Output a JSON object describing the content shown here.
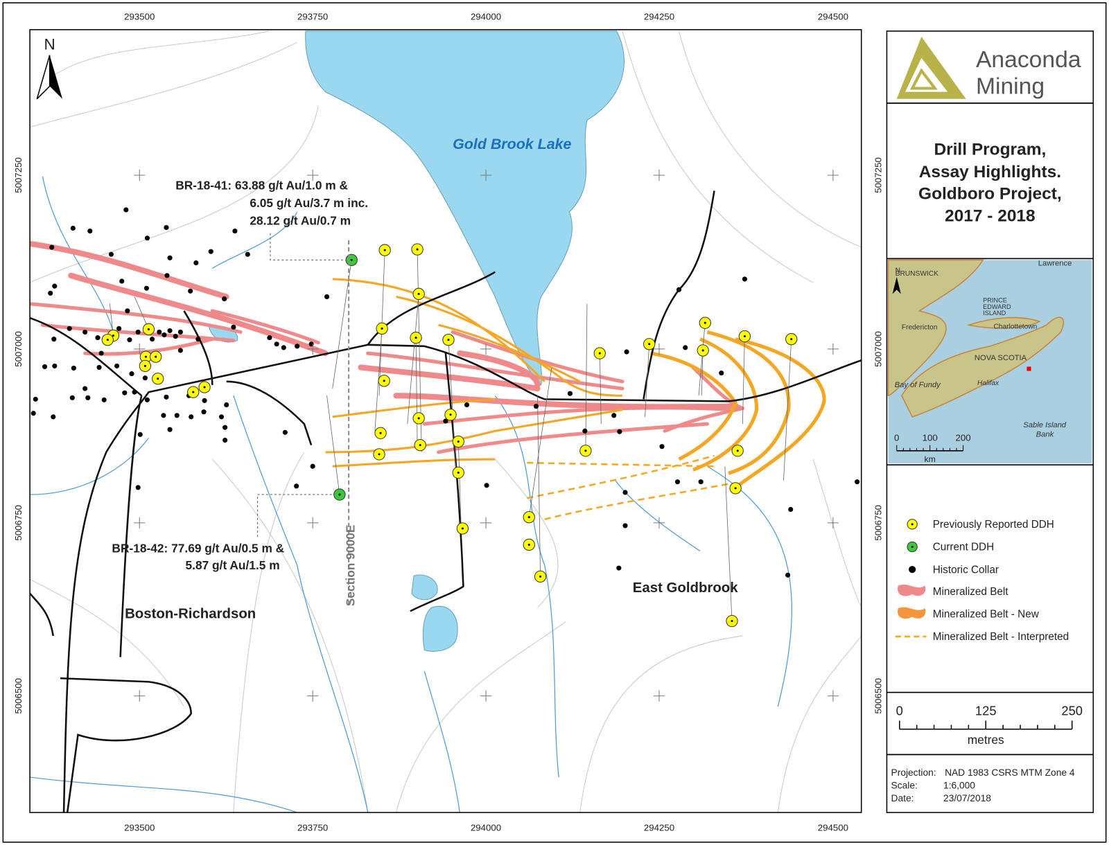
{
  "map": {
    "x_labels": [
      293500,
      293750,
      294000,
      294250,
      294500
    ],
    "y_labels": [
      5007250,
      5007000,
      5006750,
      5006500
    ],
    "north": "N",
    "lake": "Gold Brook Lake",
    "places": [
      "Boston-Richardson",
      "East Goldbrook"
    ],
    "section": "Section 9000E",
    "annotations": [
      [
        "BR-18-41: 63.88 g/t Au/1.0 m &",
        "6.05 g/t Au/3.7 m inc.",
        "28.12 g/t Au/0.7 m"
      ],
      [
        "BR-18-42: 77.69 g/t Au/0.5 m &",
        "5.87 g/t Au/1.5 m"
      ]
    ]
  },
  "logo": [
    "Anaconda",
    "Mining"
  ],
  "title": [
    "Drill Program,",
    "Assay Highlights.",
    "Goldboro Project,",
    "2017 - 2018"
  ],
  "inset": {
    "north": "N",
    "labels": [
      "BRUNSWICK",
      "Lawrence",
      "PRINCE",
      "EDWARD",
      "ISLAND",
      "Fredericton",
      "Charlottetown",
      "NOVA SCOTIA",
      "Bay of Fundy",
      "Halifax",
      "Sable Island",
      "Bank"
    ],
    "scale": [
      0,
      100,
      200
    ],
    "unit": "km"
  },
  "legend": [
    "Previously Reported DDH",
    "Current DDH",
    "Historic Collar",
    "Mineralized Belt",
    "Mineralized Belt - New",
    "Mineralized Belt - Interpreted"
  ],
  "scale_bar": {
    "ticks": [
      0,
      125,
      250
    ],
    "unit": "metres"
  },
  "projection": [
    [
      "Projection:",
      "NAD 1983 CSRS MTM Zone 4"
    ],
    [
      "Scale:",
      "1:6,000"
    ],
    [
      "Date:",
      "23/07/2018"
    ]
  ]
}
